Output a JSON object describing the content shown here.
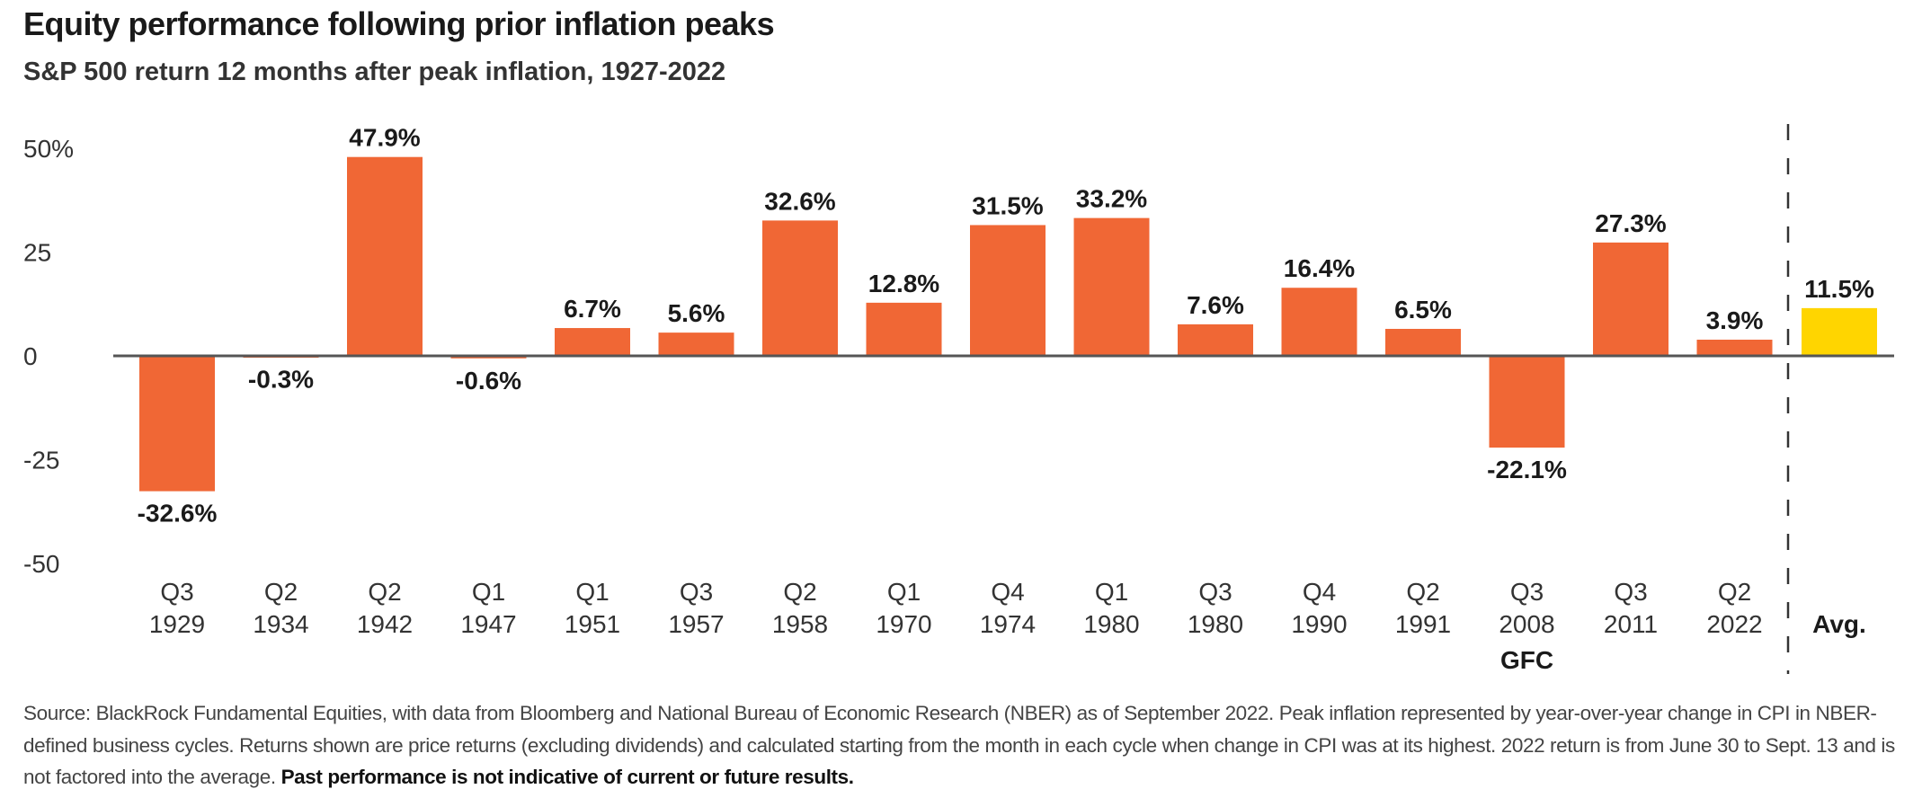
{
  "chart_data": {
    "type": "bar",
    "title": "Equity performance following prior inflation peaks",
    "subtitle": "S&P 500 return 12 months after peak inflation, 1927-2022",
    "categories": [
      {
        "q": "Q3",
        "year": "1929",
        "note": ""
      },
      {
        "q": "Q2",
        "year": "1934",
        "note": ""
      },
      {
        "q": "Q2",
        "year": "1942",
        "note": ""
      },
      {
        "q": "Q1",
        "year": "1947",
        "note": ""
      },
      {
        "q": "Q1",
        "year": "1951",
        "note": ""
      },
      {
        "q": "Q3",
        "year": "1957",
        "note": ""
      },
      {
        "q": "Q2",
        "year": "1958",
        "note": ""
      },
      {
        "q": "Q1",
        "year": "1970",
        "note": ""
      },
      {
        "q": "Q4",
        "year": "1974",
        "note": ""
      },
      {
        "q": "Q1",
        "year": "1980",
        "note": ""
      },
      {
        "q": "Q3",
        "year": "1980",
        "note": ""
      },
      {
        "q": "Q4",
        "year": "1990",
        "note": ""
      },
      {
        "q": "Q2",
        "year": "1991",
        "note": ""
      },
      {
        "q": "Q3",
        "year": "2008",
        "note": "GFC"
      },
      {
        "q": "Q3",
        "year": "2011",
        "note": ""
      },
      {
        "q": "Q2",
        "year": "2022",
        "note": ""
      }
    ],
    "values": [
      -32.6,
      -0.3,
      47.9,
      -0.6,
      6.7,
      5.6,
      32.6,
      12.8,
      31.5,
      33.2,
      7.6,
      16.4,
      6.5,
      -22.1,
      27.3,
      3.9
    ],
    "data_labels": [
      "-32.6%",
      "-0.3%",
      "47.9%",
      "-0.6%",
      "6.7%",
      "5.6%",
      "32.6%",
      "12.8%",
      "31.5%",
      "33.2%",
      "7.6%",
      "16.4%",
      "6.5%",
      "-22.1%",
      "27.3%",
      "3.9%"
    ],
    "average": {
      "label": "Avg.",
      "value": 11.5,
      "data_label": "11.5%"
    },
    "yticks": [
      {
        "value": 50,
        "label": "50%"
      },
      {
        "value": 25,
        "label": "25"
      },
      {
        "value": 0,
        "label": "0"
      },
      {
        "value": -25,
        "label": "-25"
      },
      {
        "value": -50,
        "label": "-50"
      }
    ],
    "ylim": [
      -50,
      50
    ],
    "grid": false,
    "colors": {
      "bars": "#F06735",
      "average": "#FFD500",
      "axis": "#555555",
      "text": "#1a1a1a"
    }
  },
  "footnote": {
    "text": "Source: BlackRock Fundamental Equities, with data from Bloomberg and National Bureau of Economic Research (NBER) as of September 2022. Peak inflation represented by year-over-year change in CPI in NBER-defined business cycles. Returns shown are price returns (excluding dividends) and calculated starting from the month in each cycle when change in CPI was at its highest. 2022 return is from June 30 to Sept. 13 and is not factored into the average. ",
    "bold": "Past performance is not indicative of current or future results."
  }
}
